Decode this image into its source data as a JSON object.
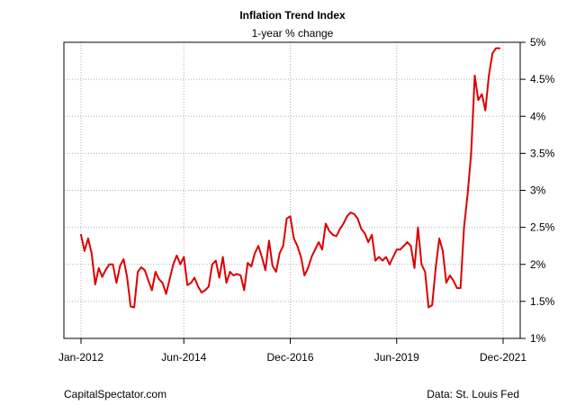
{
  "chart_data": {
    "type": "line",
    "title": "Inflation Trend Index",
    "subtitle": "1-year % change",
    "xlabel": "",
    "ylabel": "",
    "x_tick_labels": [
      "Jan-2012",
      "Jun-2014",
      "Dec-2016",
      "Jun-2019",
      "Dec-2021"
    ],
    "y_tick_labels": [
      "1%",
      "1.5%",
      "2%",
      "2.5%",
      "3%",
      "3.5%",
      "4%",
      "4.5%",
      "5%"
    ],
    "ylim": [
      1,
      5
    ],
    "y_ticks": [
      1,
      1.5,
      2,
      2.5,
      3,
      3.5,
      4,
      4.5,
      5
    ],
    "y_axis_side": "right",
    "grid": true,
    "legend": "none",
    "series": [
      {
        "color": "#dd0000",
        "points": [
          [
            "2012-01",
            2.4
          ],
          [
            "2012-02",
            2.18
          ],
          [
            "2012-03",
            2.35
          ],
          [
            "2012-04",
            2.15
          ],
          [
            "2012-05",
            1.73
          ],
          [
            "2012-06",
            1.95
          ],
          [
            "2012-07",
            1.83
          ],
          [
            "2012-08",
            1.93
          ],
          [
            "2012-09",
            2.0
          ],
          [
            "2012-10",
            2.0
          ],
          [
            "2012-11",
            1.75
          ],
          [
            "2012-12",
            1.98
          ],
          [
            "2013-01",
            2.07
          ],
          [
            "2013-02",
            1.83
          ],
          [
            "2013-03",
            1.43
          ],
          [
            "2013-04",
            1.42
          ],
          [
            "2013-05",
            1.9
          ],
          [
            "2013-06",
            1.96
          ],
          [
            "2013-07",
            1.92
          ],
          [
            "2013-08",
            1.78
          ],
          [
            "2013-09",
            1.65
          ],
          [
            "2013-10",
            1.9
          ],
          [
            "2013-11",
            1.8
          ],
          [
            "2013-12",
            1.75
          ],
          [
            "2014-01",
            1.6
          ],
          [
            "2014-02",
            1.8
          ],
          [
            "2014-03",
            2.0
          ],
          [
            "2014-04",
            2.12
          ],
          [
            "2014-05",
            2.0
          ],
          [
            "2014-06",
            2.1
          ],
          [
            "2014-07",
            1.72
          ],
          [
            "2014-08",
            1.75
          ],
          [
            "2014-09",
            1.82
          ],
          [
            "2014-10",
            1.7
          ],
          [
            "2014-11",
            1.62
          ],
          [
            "2014-12",
            1.65
          ],
          [
            "2015-01",
            1.7
          ],
          [
            "2015-02",
            2.0
          ],
          [
            "2015-03",
            2.05
          ],
          [
            "2015-04",
            1.82
          ],
          [
            "2015-05",
            2.1
          ],
          [
            "2015-06",
            1.75
          ],
          [
            "2015-07",
            1.9
          ],
          [
            "2015-08",
            1.85
          ],
          [
            "2015-09",
            1.87
          ],
          [
            "2015-10",
            1.85
          ],
          [
            "2015-11",
            1.65
          ],
          [
            "2015-12",
            2.02
          ],
          [
            "2016-01",
            1.97
          ],
          [
            "2016-02",
            2.15
          ],
          [
            "2016-03",
            2.25
          ],
          [
            "2016-04",
            2.1
          ],
          [
            "2016-05",
            1.92
          ],
          [
            "2016-06",
            2.32
          ],
          [
            "2016-07",
            1.98
          ],
          [
            "2016-08",
            1.9
          ],
          [
            "2016-09",
            2.15
          ],
          [
            "2016-10",
            2.25
          ],
          [
            "2016-11",
            2.62
          ],
          [
            "2016-12",
            2.65
          ],
          [
            "2017-01",
            2.35
          ],
          [
            "2017-02",
            2.25
          ],
          [
            "2017-03",
            2.1
          ],
          [
            "2017-04",
            1.85
          ],
          [
            "2017-05",
            1.95
          ],
          [
            "2017-06",
            2.1
          ],
          [
            "2017-07",
            2.2
          ],
          [
            "2017-08",
            2.3
          ],
          [
            "2017-09",
            2.2
          ],
          [
            "2017-10",
            2.55
          ],
          [
            "2017-11",
            2.45
          ],
          [
            "2017-12",
            2.4
          ],
          [
            "2018-01",
            2.38
          ],
          [
            "2018-02",
            2.48
          ],
          [
            "2018-03",
            2.55
          ],
          [
            "2018-04",
            2.65
          ],
          [
            "2018-05",
            2.7
          ],
          [
            "2018-06",
            2.68
          ],
          [
            "2018-07",
            2.62
          ],
          [
            "2018-08",
            2.48
          ],
          [
            "2018-09",
            2.42
          ],
          [
            "2018-10",
            2.3
          ],
          [
            "2018-11",
            2.4
          ],
          [
            "2018-12",
            2.05
          ],
          [
            "2019-01",
            2.1
          ],
          [
            "2019-02",
            2.05
          ],
          [
            "2019-03",
            2.1
          ],
          [
            "2019-04",
            2.0
          ],
          [
            "2019-05",
            2.1
          ],
          [
            "2019-06",
            2.2
          ],
          [
            "2019-07",
            2.2
          ],
          [
            "2019-08",
            2.25
          ],
          [
            "2019-09",
            2.3
          ],
          [
            "2019-10",
            2.25
          ],
          [
            "2019-11",
            1.95
          ],
          [
            "2019-12",
            2.5
          ],
          [
            "2020-01",
            2.0
          ],
          [
            "2020-02",
            1.9
          ],
          [
            "2020-03",
            1.42
          ],
          [
            "2020-04",
            1.45
          ],
          [
            "2020-05",
            1.95
          ],
          [
            "2020-06",
            2.35
          ],
          [
            "2020-07",
            2.18
          ],
          [
            "2020-08",
            1.75
          ],
          [
            "2020-09",
            1.85
          ],
          [
            "2020-10",
            1.78
          ],
          [
            "2020-11",
            1.68
          ],
          [
            "2020-12",
            1.68
          ],
          [
            "2021-01",
            2.5
          ],
          [
            "2021-02",
            2.95
          ],
          [
            "2021-03",
            3.5
          ],
          [
            "2021-04",
            4.55
          ],
          [
            "2021-05",
            4.22
          ],
          [
            "2021-06",
            4.3
          ],
          [
            "2021-07",
            4.08
          ],
          [
            "2021-08",
            4.55
          ],
          [
            "2021-09",
            4.85
          ],
          [
            "2021-10",
            4.92
          ],
          [
            "2021-11",
            4.92
          ]
        ]
      }
    ]
  },
  "credits": {
    "left": "CapitalSpectator.com",
    "right": "Data: St. Louis Fed"
  }
}
